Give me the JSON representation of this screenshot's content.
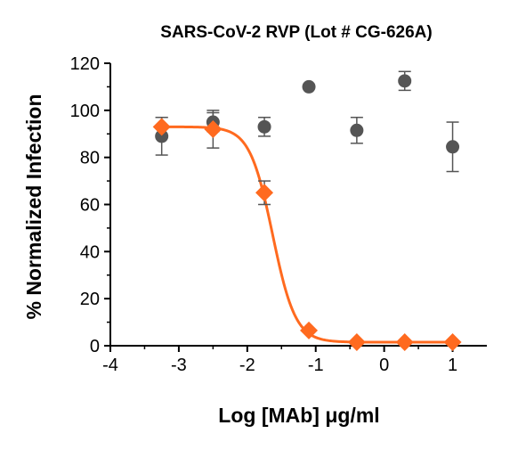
{
  "chart_data": {
    "type": "scatter",
    "title": "SARS-CoV-2 RVP (Lot # CG-626A)",
    "xlabel": "Log [MAb] μg/ml",
    "ylabel": "% Normalized Infection",
    "xlim": [
      -4,
      1.5
    ],
    "ylim": [
      0,
      120
    ],
    "xticks": [
      -4,
      -3,
      -2,
      -1,
      0,
      1
    ],
    "yticks": [
      0,
      20,
      40,
      60,
      80,
      100,
      120
    ],
    "grid": false,
    "colors": {
      "circle_series": "#555555",
      "diamond_series": "#FF6A1F",
      "error_bars": "#555555"
    },
    "series": [
      {
        "marker": "circle",
        "fit": false,
        "points": [
          {
            "x": -3.25,
            "y": 89,
            "err": 8
          },
          {
            "x": -2.5,
            "y": 95,
            "err": 4
          },
          {
            "x": -1.75,
            "y": 93,
            "err": 4
          },
          {
            "x": -1.1,
            "y": 110,
            "err": 0
          },
          {
            "x": -0.4,
            "y": 91.5,
            "err": 5.5
          },
          {
            "x": 0.3,
            "y": 112.5,
            "err": 4
          },
          {
            "x": 1.0,
            "y": 84.5,
            "err": 10.5
          }
        ]
      },
      {
        "marker": "diamond",
        "fit": true,
        "fit_params": {
          "top": 93,
          "bottom": 1.5,
          "log_ic50": -1.63,
          "hill": 2.6
        },
        "points": [
          {
            "x": -3.25,
            "y": 93,
            "err": 4
          },
          {
            "x": -2.5,
            "y": 92,
            "err": 8
          },
          {
            "x": -1.75,
            "y": 65,
            "err": 5
          },
          {
            "x": -1.1,
            "y": 6.5,
            "err": 0
          },
          {
            "x": -0.4,
            "y": 1.5,
            "err": 0
          },
          {
            "x": 0.3,
            "y": 1.5,
            "err": 0
          },
          {
            "x": 1.0,
            "y": 1.5,
            "err": 0
          }
        ]
      }
    ]
  }
}
